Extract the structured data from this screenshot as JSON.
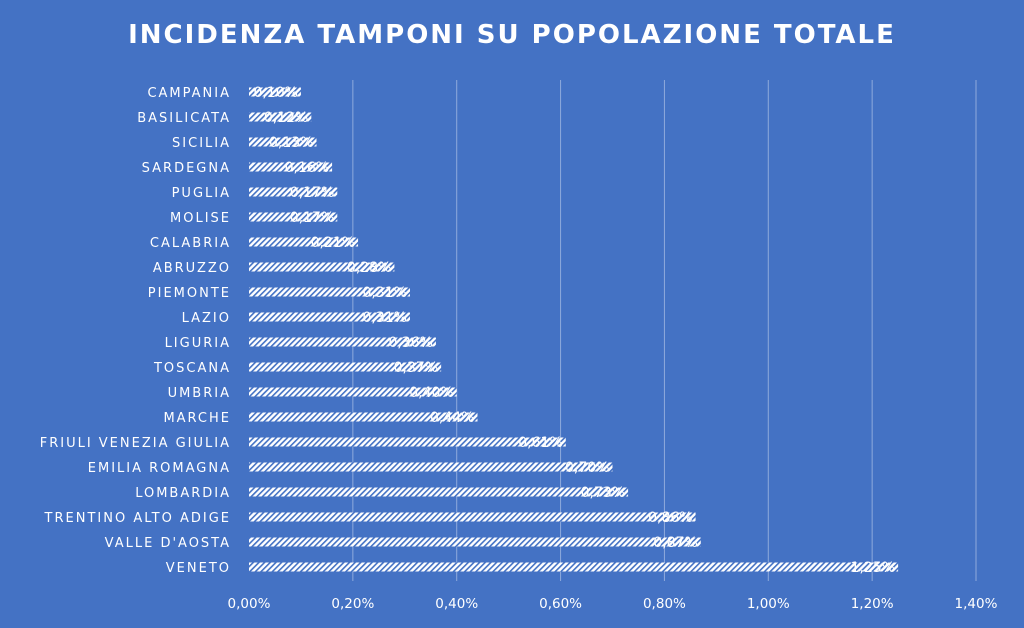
{
  "chart_data": {
    "type": "bar",
    "orientation": "horizontal",
    "title": "INCIDENZA TAMPONI SU POPOLAZIONE TOTALE",
    "xlabel": "",
    "ylabel": "",
    "xlim": [
      0,
      1.4
    ],
    "xticks": [
      0,
      0.2,
      0.4,
      0.6,
      0.8,
      1.0,
      1.2,
      1.4
    ],
    "xtick_labels": [
      "0,00%",
      "0,20%",
      "0,40%",
      "0,60%",
      "0,80%",
      "1,00%",
      "1,20%",
      "1,40%"
    ],
    "grid": true,
    "categories": [
      "CAMPANIA",
      "BASILICATA",
      "SICILIA",
      "SARDEGNA",
      "PUGLIA",
      "MOLISE",
      "CALABRIA",
      "ABRUZZO",
      "PIEMONTE",
      "LAZIO",
      "LIGURIA",
      "TOSCANA",
      "UMBRIA",
      "MARCHE",
      "FRIULI VENEZIA GIULIA",
      "EMILIA ROMAGNA",
      "LOMBARDIA",
      "TRENTINO ALTO ADIGE",
      "VALLE D'AOSTA",
      "VENETO"
    ],
    "values": [
      0.1,
      0.12,
      0.13,
      0.16,
      0.17,
      0.17,
      0.21,
      0.28,
      0.31,
      0.31,
      0.36,
      0.37,
      0.4,
      0.44,
      0.61,
      0.7,
      0.73,
      0.86,
      0.87,
      1.25
    ],
    "data_labels": [
      "0,10%",
      "0,12%",
      "0,13%",
      "0,16%",
      "0,17%",
      "0,17%",
      "0,21%",
      "0,28%",
      "0,31%",
      "0,31%",
      "0,36%",
      "0,37%",
      "0,40%",
      "0,44%",
      "0,61%",
      "0,70%",
      "0,73%",
      "0,86%",
      "0,87%",
      "1,25%"
    ],
    "colors": {
      "background": "#4472C4",
      "bar": "#FFFFFF",
      "bar_stripe": "#4472C4",
      "gridline": "#8FAADC",
      "text": "#FFFFFF"
    }
  }
}
